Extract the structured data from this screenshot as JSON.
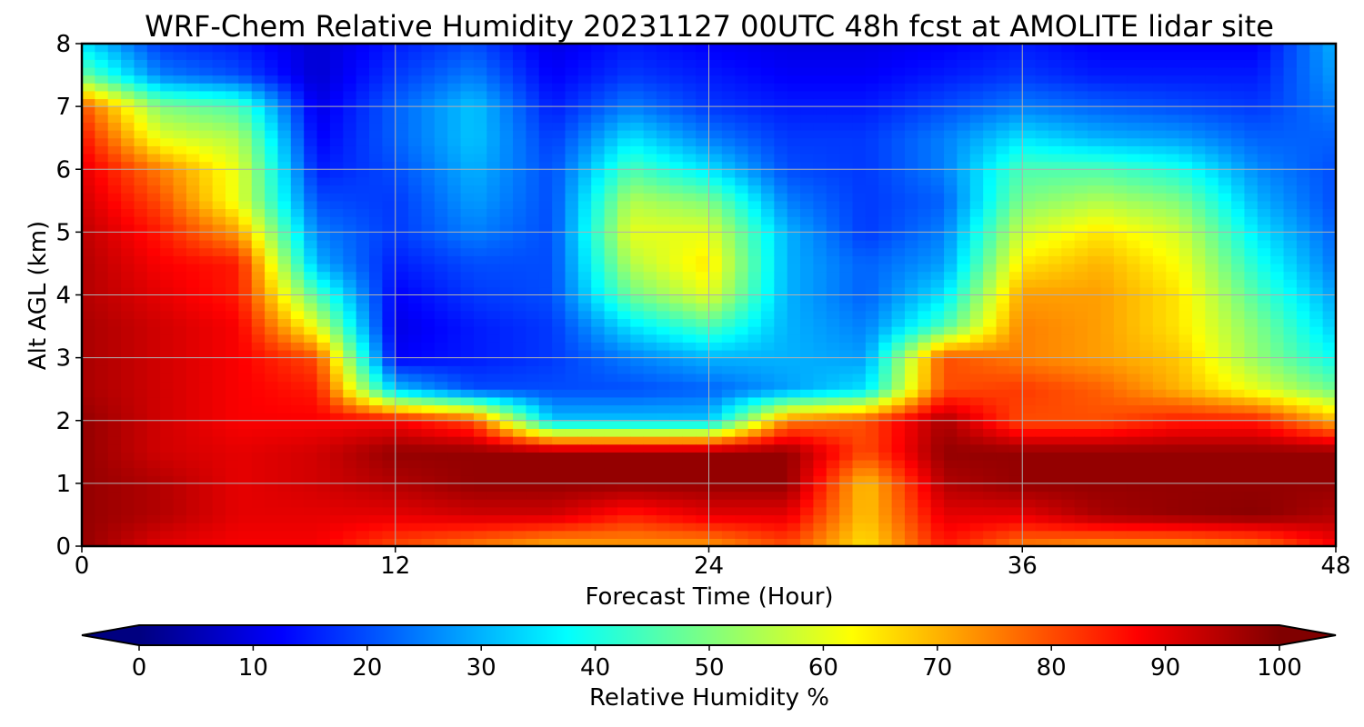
{
  "chart_data": {
    "type": "heatmap",
    "title": "WRF-Chem Relative Humidity 20231127 00UTC 48h fcst at AMOLITE lidar site",
    "xlabel": "Forecast Time (Hour)",
    "ylabel": "Alt AGL (km)",
    "xlim": [
      0,
      48
    ],
    "ylim": [
      0,
      8
    ],
    "xticks": [
      0,
      12,
      24,
      36,
      48
    ],
    "yticks": [
      0,
      1,
      2,
      3,
      4,
      5,
      6,
      7,
      8
    ],
    "grid": true,
    "colormap": "jet",
    "colorbar": {
      "label": "Relative Humidity %",
      "range": [
        0,
        100
      ],
      "ticks": [
        0,
        10,
        20,
        30,
        40,
        50,
        60,
        70,
        80,
        90,
        100
      ],
      "extend": "both",
      "orientation": "horizontal"
    },
    "x": [
      0,
      3,
      6,
      9,
      12,
      15,
      18,
      21,
      24,
      27,
      30,
      33,
      36,
      39,
      42,
      45,
      48
    ],
    "y": [
      0,
      0.5,
      1,
      1.5,
      2,
      2.5,
      3,
      3.5,
      4,
      4.5,
      5,
      5.5,
      6,
      6.5,
      7,
      7.5,
      8
    ],
    "z": [
      [
        98,
        90,
        88,
        88,
        80,
        75,
        70,
        72,
        72,
        80,
        65,
        85,
        75,
        72,
        72,
        75,
        88
      ],
      [
        98,
        95,
        90,
        90,
        90,
        92,
        92,
        85,
        90,
        90,
        68,
        90,
        90,
        96,
        98,
        99,
        95
      ],
      [
        98,
        95,
        90,
        92,
        95,
        98,
        98,
        98,
        98,
        98,
        68,
        95,
        98,
        98,
        98,
        98,
        98
      ],
      [
        98,
        92,
        90,
        92,
        98,
        98,
        98,
        98,
        98,
        98,
        80,
        98,
        98,
        98,
        98,
        98,
        98
      ],
      [
        98,
        92,
        88,
        88,
        88,
        80,
        32,
        32,
        32,
        75,
        80,
        96,
        80,
        80,
        85,
        85,
        70
      ],
      [
        96,
        92,
        88,
        85,
        32,
        20,
        20,
        20,
        22,
        28,
        35,
        80,
        82,
        78,
        70,
        60,
        48
      ],
      [
        96,
        92,
        88,
        80,
        12,
        15,
        18,
        25,
        30,
        30,
        28,
        80,
        75,
        72,
        68,
        52,
        38
      ],
      [
        96,
        92,
        88,
        60,
        10,
        15,
        18,
        35,
        45,
        30,
        25,
        45,
        75,
        72,
        65,
        50,
        32
      ],
      [
        95,
        90,
        85,
        45,
        12,
        18,
        20,
        48,
        60,
        30,
        22,
        35,
        72,
        72,
        65,
        45,
        28
      ],
      [
        95,
        88,
        85,
        30,
        15,
        20,
        20,
        55,
        65,
        30,
        22,
        28,
        65,
        70,
        62,
        40,
        24
      ],
      [
        94,
        85,
        72,
        25,
        18,
        25,
        20,
        60,
        60,
        30,
        18,
        25,
        58,
        65,
        58,
        35,
        22
      ],
      [
        92,
        80,
        60,
        20,
        18,
        28,
        20,
        55,
        50,
        25,
        18,
        22,
        50,
        55,
        50,
        30,
        20
      ],
      [
        90,
        75,
        60,
        15,
        20,
        30,
        20,
        45,
        35,
        20,
        18,
        25,
        45,
        45,
        40,
        26,
        20
      ],
      [
        86,
        60,
        55,
        12,
        22,
        32,
        18,
        35,
        25,
        18,
        18,
        25,
        35,
        30,
        28,
        22,
        22
      ],
      [
        80,
        50,
        45,
        10,
        22,
        32,
        15,
        25,
        18,
        15,
        15,
        20,
        25,
        22,
        20,
        18,
        25
      ],
      [
        48,
        25,
        20,
        8,
        18,
        25,
        12,
        18,
        15,
        12,
        12,
        15,
        18,
        15,
        15,
        15,
        28
      ],
      [
        35,
        18,
        15,
        8,
        15,
        20,
        10,
        15,
        12,
        10,
        10,
        12,
        15,
        12,
        12,
        12,
        30
      ]
    ]
  }
}
